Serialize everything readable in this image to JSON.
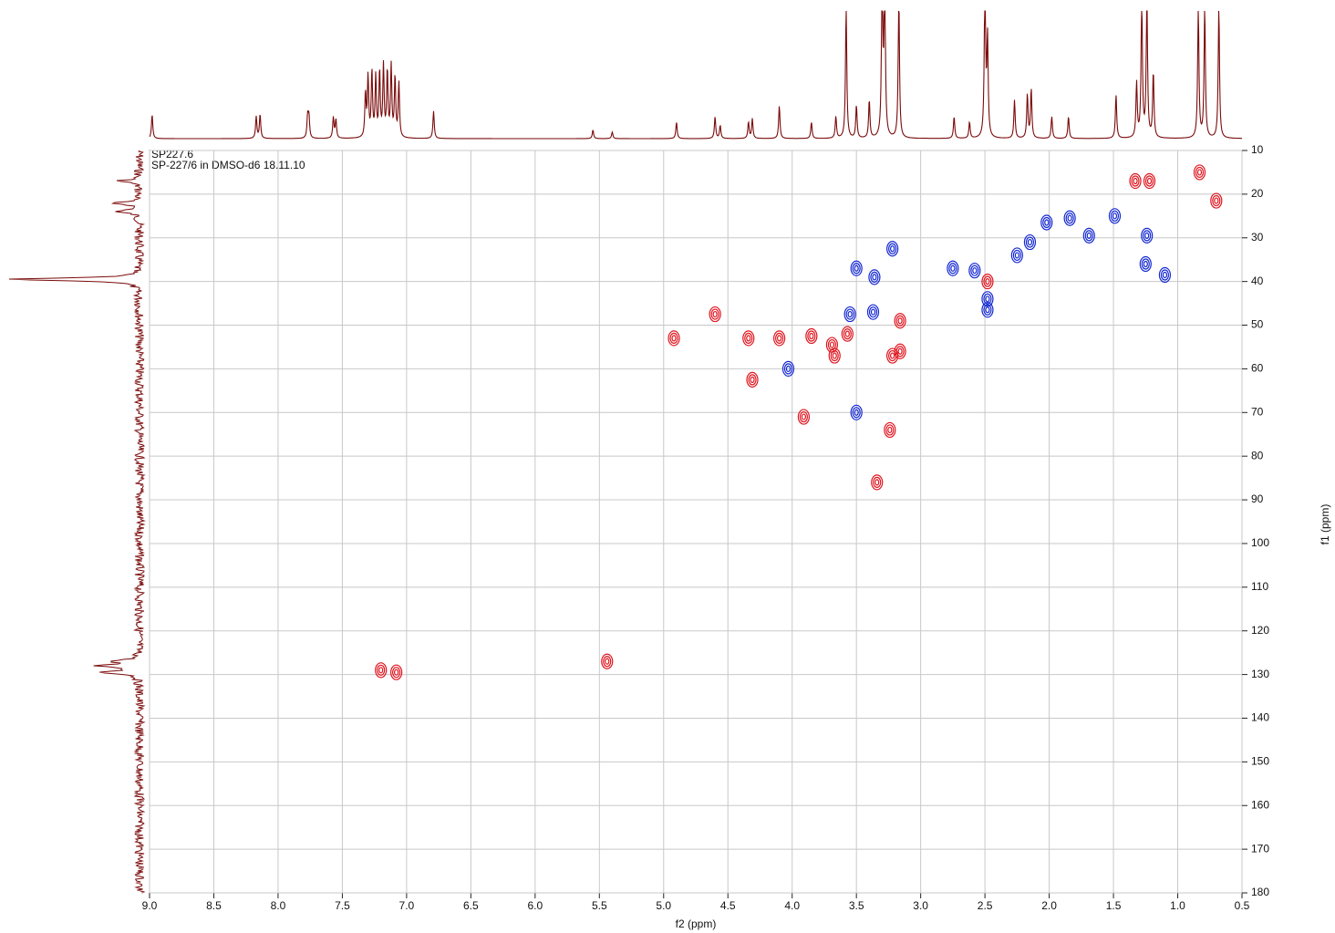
{
  "chart_data": {
    "type": "contour",
    "title": "SP227.6",
    "subtitle": "SP-227/6 in DMSO-d6 18.11.10",
    "x_label": "f2 (ppm)",
    "y_label": "f1 (ppm)",
    "xlim": [
      9.0,
      0.5
    ],
    "ylim": [
      10,
      180
    ],
    "xticks": [
      {
        "value": 9,
        "label": "9.0"
      },
      {
        "value": 8.5,
        "label": "8.5"
      },
      {
        "value": 8,
        "label": "8.0"
      },
      {
        "value": 7.5,
        "label": "7.5"
      },
      {
        "value": 7,
        "label": "7.0"
      },
      {
        "value": 6.5,
        "label": "6.5"
      },
      {
        "value": 6,
        "label": "6.0"
      },
      {
        "value": 5.5,
        "label": "5.5"
      },
      {
        "value": 5,
        "label": "5.0"
      },
      {
        "value": 4.5,
        "label": "4.5"
      },
      {
        "value": 4,
        "label": "4.0"
      },
      {
        "value": 3.5,
        "label": "3.5"
      },
      {
        "value": 3,
        "label": "3.0"
      },
      {
        "value": 2.5,
        "label": "2.5"
      },
      {
        "value": 2,
        "label": "2.0"
      },
      {
        "value": 1.5,
        "label": "1.5"
      },
      {
        "value": 1,
        "label": "1.0"
      },
      {
        "value": 0.5,
        "label": "0.5"
      }
    ],
    "yticks": [
      10,
      20,
      30,
      40,
      50,
      60,
      70,
      80,
      90,
      100,
      110,
      120,
      130,
      140,
      150,
      160,
      170,
      180
    ],
    "grid": true,
    "series": [
      {
        "color": "#e0141e",
        "x": [
          0.83,
          0.7,
          1.33,
          1.22,
          2.48,
          4.6,
          4.92,
          4.34,
          4.1,
          3.85,
          3.57,
          3.69,
          3.67,
          3.16,
          3.16,
          4.31,
          3.91,
          3.24,
          3.34,
          5.44,
          7.2,
          7.08,
          3.22
        ],
        "values": [
          15,
          21.5,
          17,
          17,
          40,
          47.5,
          53,
          53,
          53,
          52.5,
          52,
          54.5,
          57,
          49,
          56,
          62.5,
          71,
          74,
          86,
          127,
          129,
          129.5,
          57
        ]
      },
      {
        "color": "#1428d2",
        "x": [
          1.49,
          1.24,
          1.25,
          1.1,
          1.69,
          1.84,
          2.02,
          2.15,
          2.25,
          2.75,
          2.58,
          3.22,
          3.36,
          3.5,
          3.37,
          3.55,
          4.03,
          3.5,
          2.48,
          2.48
        ],
        "values": [
          25,
          29.5,
          36,
          38.5,
          29.5,
          25.5,
          26.5,
          31,
          34,
          37,
          37.5,
          32.5,
          39,
          37,
          47,
          47.5,
          60,
          70,
          44,
          46.5
        ]
      }
    ],
    "top_projection": {
      "color": "#7a0a0a",
      "x": [
        8.98,
        8.17,
        8.14,
        7.77,
        7.76,
        7.57,
        7.55,
        7.32,
        7.3,
        7.27,
        7.24,
        7.21,
        7.18,
        7.15,
        7.12,
        7.09,
        7.06,
        6.79,
        5.55,
        5.4,
        4.9,
        4.6,
        4.56,
        4.34,
        4.31,
        4.1,
        3.85,
        3.66,
        3.58,
        3.5,
        3.4,
        3.3,
        3.28,
        3.17,
        2.74,
        2.62,
        2.5,
        2.48,
        2.27,
        2.17,
        2.14,
        1.98,
        1.85,
        1.48,
        1.32,
        1.28,
        1.24,
        1.19,
        0.84,
        0.79,
        0.68
      ],
      "values": [
        0.22,
        0.2,
        0.22,
        0.2,
        0.2,
        0.19,
        0.17,
        0.4,
        0.55,
        0.6,
        0.55,
        0.6,
        0.65,
        0.6,
        0.65,
        0.55,
        0.5,
        0.25,
        0.08,
        0.06,
        0.15,
        0.2,
        0.12,
        0.15,
        0.18,
        0.3,
        0.15,
        0.2,
        1.2,
        0.3,
        0.35,
        1.5,
        1.5,
        1.3,
        0.2,
        0.15,
        1.5,
        0.9,
        0.35,
        0.4,
        0.45,
        0.2,
        0.2,
        0.4,
        0.5,
        1.3,
        1.3,
        0.6,
        1.2,
        1.2,
        1.2
      ]
    },
    "left_projection": {
      "color": "#7a0a0a",
      "x": [
        39.5,
        22,
        24,
        17,
        127,
        128,
        129.5
      ],
      "values": [
        1.0,
        0.2,
        0.18,
        0.15,
        0.2,
        0.3,
        0.28
      ]
    }
  }
}
